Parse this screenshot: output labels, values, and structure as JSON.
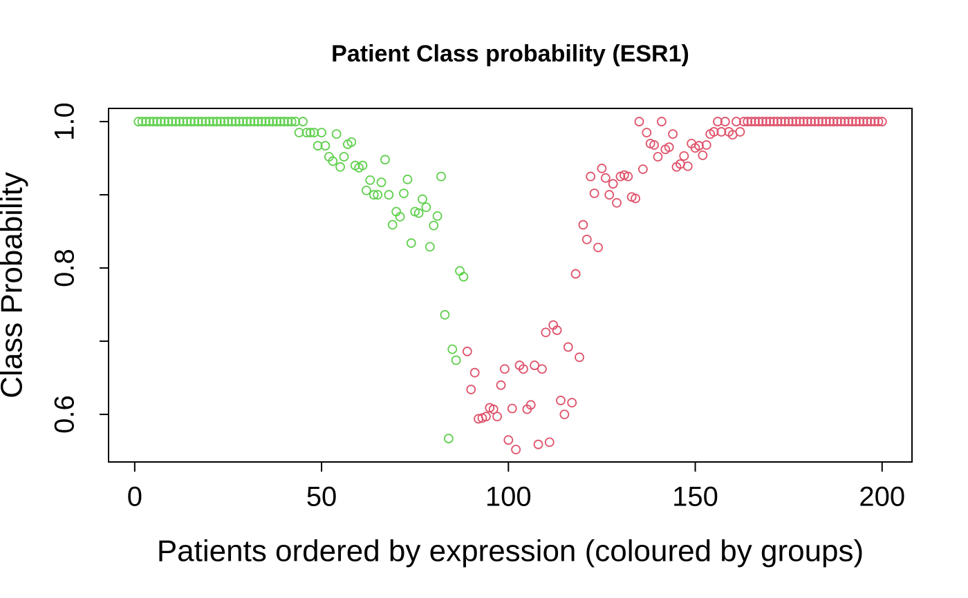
{
  "chart_data": {
    "type": "scatter",
    "title": "Patient Class probability (ESR1)",
    "x_label": "Patients ordered by expression (coloured by groups)",
    "y_label": "Class Probability",
    "xlim": [
      -7,
      208
    ],
    "ylim": [
      0.535,
      1.018
    ],
    "xticks": [
      0,
      50,
      100,
      150,
      200
    ],
    "yticks": [
      0.6,
      0.8,
      {
        "value": 1,
        "label": "1.0"
      }
    ],
    "yticks_unlabeled": [
      0.7,
      0.9
    ],
    "grid": false,
    "series": [
      {
        "color": "#61D04F",
        "x": [
          1,
          2,
          3,
          4,
          5,
          6,
          7,
          8,
          9,
          10,
          11,
          12,
          13,
          14,
          15,
          16,
          17,
          18,
          19,
          20,
          21,
          22,
          23,
          24,
          25,
          26,
          27,
          28,
          29,
          30,
          31,
          32,
          33,
          34,
          35,
          36,
          37,
          38,
          39,
          40,
          41,
          42,
          43,
          44,
          45,
          46,
          47,
          48,
          49,
          50,
          51,
          52,
          53,
          54,
          55,
          56,
          57,
          58,
          59,
          60,
          61,
          62,
          63,
          64,
          65,
          66,
          67,
          68,
          69,
          70,
          71,
          72,
          73,
          74,
          75,
          76,
          77,
          78,
          79,
          80,
          81,
          82,
          83,
          84,
          85,
          86,
          87,
          88
        ],
        "values": [
          1,
          1,
          1,
          1,
          1,
          1,
          1,
          1,
          1,
          1,
          1,
          1,
          1,
          1,
          1,
          1,
          1,
          1,
          1,
          1,
          1,
          1,
          1,
          1,
          1,
          1,
          1,
          1,
          1,
          1,
          1,
          1,
          1,
          1,
          1,
          1,
          1,
          1,
          1,
          1,
          1,
          1,
          1,
          0.985,
          1,
          0.985,
          0.985,
          0.985,
          0.967,
          0.985,
          0.967,
          0.952,
          0.946,
          0.983,
          0.938,
          0.952,
          0.969,
          0.972,
          0.94,
          0.937,
          0.94,
          0.906,
          0.92,
          0.9,
          0.9,
          0.917,
          0.948,
          0.9,
          0.859,
          0.877,
          0.87,
          0.902,
          0.921,
          0.834,
          0.877,
          0.875,
          0.894,
          0.883,
          0.829,
          0.858,
          0.871,
          0.925,
          0.736,
          0.567,
          0.689,
          0.674,
          0.796,
          0.788
        ]
      },
      {
        "color": "#DF536B",
        "x": [
          89,
          90,
          91,
          92,
          93,
          94,
          95,
          96,
          97,
          98,
          99,
          100,
          101,
          102,
          103,
          104,
          105,
          106,
          107,
          108,
          109,
          110,
          111,
          112,
          113,
          114,
          115,
          116,
          117,
          118,
          119,
          120,
          121,
          122,
          123,
          124,
          125,
          126,
          127,
          128,
          129,
          130,
          131,
          132,
          133,
          134,
          135,
          136,
          137,
          138,
          139,
          140,
          141,
          142,
          143,
          144,
          145,
          146,
          147,
          148,
          149,
          150,
          151,
          152,
          153,
          154,
          155,
          156,
          157,
          158,
          159,
          160,
          161,
          162,
          163,
          164,
          165,
          166,
          167,
          168,
          169,
          170,
          171,
          172,
          173,
          174,
          175,
          176,
          177,
          178,
          179,
          180,
          181,
          182,
          183,
          184,
          185,
          186,
          187,
          188,
          189,
          190,
          191,
          192,
          193,
          194,
          195,
          196,
          197,
          198,
          199,
          200
        ],
        "values": [
          0.686,
          0.634,
          0.657,
          0.594,
          0.595,
          0.597,
          0.609,
          0.607,
          0.597,
          0.64,
          0.662,
          0.565,
          0.608,
          0.552,
          0.667,
          0.662,
          0.607,
          0.613,
          0.667,
          0.559,
          0.662,
          0.712,
          0.562,
          0.722,
          0.715,
          0.619,
          0.6,
          0.692,
          0.616,
          0.792,
          0.678,
          0.859,
          0.839,
          0.925,
          0.902,
          0.828,
          0.936,
          0.923,
          0.9,
          0.915,
          0.889,
          0.925,
          0.927,
          0.925,
          0.897,
          0.895,
          1,
          0.935,
          0.985,
          0.97,
          0.968,
          0.952,
          1,
          0.962,
          0.965,
          0.983,
          0.938,
          0.942,
          0.953,
          0.939,
          0.97,
          0.964,
          0.967,
          0.954,
          0.968,
          0.983,
          0.986,
          1,
          0.986,
          1,
          0.986,
          0.982,
          1,
          0.986,
          1,
          1,
          1,
          1,
          1,
          1,
          1,
          1,
          1,
          1,
          1,
          1,
          1,
          1,
          1,
          1,
          1,
          1,
          1,
          1,
          1,
          1,
          1,
          1,
          1,
          1,
          1,
          1,
          1,
          1,
          1,
          1,
          1,
          1,
          1,
          1,
          1,
          1
        ]
      }
    ]
  }
}
